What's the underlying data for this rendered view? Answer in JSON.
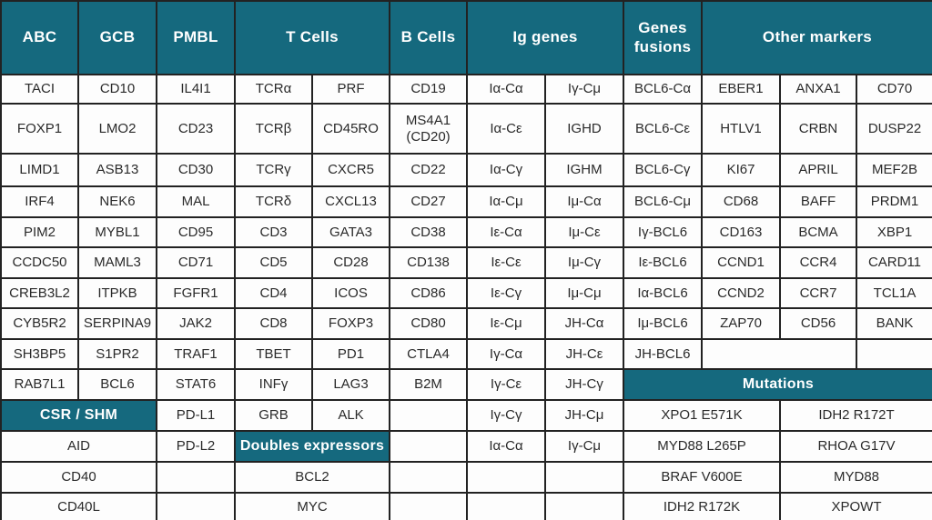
{
  "colors": {
    "teal": "#15697e",
    "border": "#222222",
    "text": "#2a2a2a",
    "cellbg": "#fdfdfd",
    "headertext": "#ffffff"
  },
  "grid": {
    "rows": [
      {
        "cells": [
          {
            "t": "ABC",
            "k": "th"
          },
          {
            "t": "GCB",
            "k": "th"
          },
          {
            "t": "PMBL",
            "k": "th"
          },
          {
            "t": "T Cells",
            "k": "th",
            "cs": 2
          },
          {
            "t": "B Cells",
            "k": "th"
          },
          {
            "t": "Ig genes",
            "k": "th",
            "cs": 2
          },
          {
            "t": "Genes fusions",
            "k": "th"
          },
          {
            "t": "Other markers",
            "k": "th",
            "cs": 3
          }
        ]
      },
      {
        "cells": [
          "TACI",
          "CD10",
          "IL4I1",
          "TCRα",
          "PRF",
          "CD19",
          "Iα-Cα",
          "Iγ-Cμ",
          "BCL6-Cα",
          "EBER1",
          "ANXA1",
          "CD70"
        ]
      },
      {
        "cells": [
          "FOXP1",
          "LMO2",
          "CD23",
          "TCRβ",
          "CD45RO",
          "MS4A1 (CD20)",
          "Iα-Cε",
          "IGHD",
          "BCL6-Cε",
          "HTLV1",
          "CRBN",
          "DUSP22"
        ]
      },
      {
        "cells": [
          "LIMD1",
          "ASB13",
          "CD30",
          "TCRγ",
          "CXCR5",
          "CD22",
          "Iα-Cγ",
          "IGHM",
          "BCL6-Cγ",
          "KI67",
          "APRIL",
          "MEF2B"
        ]
      },
      {
        "cells": [
          "IRF4",
          "NEK6",
          "MAL",
          "TCRδ",
          "CXCL13",
          "CD27",
          "Iα-Cμ",
          "Iμ-Cα",
          "BCL6-Cμ",
          "CD68",
          "BAFF",
          "PRDM1"
        ]
      },
      {
        "cells": [
          "PIM2",
          "MYBL1",
          "CD95",
          "CD3",
          "GATA3",
          "CD38",
          "Iε-Cα",
          "Iμ-Cε",
          "Iγ-BCL6",
          "CD163",
          "BCMA",
          "XBP1"
        ]
      },
      {
        "cells": [
          "CCDC50",
          "MAML3",
          "CD71",
          "CD5",
          "CD28",
          "CD138",
          "Iε-Cε",
          "Iμ-Cγ",
          "Iε-BCL6",
          "CCND1",
          "CCR4",
          "CARD11"
        ]
      },
      {
        "cells": [
          "CREB3L2",
          "ITPKB",
          "FGFR1",
          "CD4",
          "ICOS",
          "CD86",
          "Iε-Cγ",
          "Iμ-Cμ",
          "Iα-BCL6",
          "CCND2",
          "CCR7",
          "TCL1A"
        ]
      },
      {
        "cells": [
          "CYB5R2",
          "SERPINA9",
          "JAK2",
          "CD8",
          "FOXP3",
          "CD80",
          "Iε-Cμ",
          "JH-Cα",
          "Iμ-BCL6",
          "ZAP70",
          "CD56",
          "BANK"
        ]
      },
      {
        "cells": [
          "SH3BP5",
          "S1PR2",
          "TRAF1",
          "TBET",
          "PD1",
          "CTLA4",
          "Iγ-Cα",
          "JH-Cε",
          "JH-BCL6",
          {
            "k": "e",
            "cs": 2
          },
          {
            "k": "e"
          }
        ]
      },
      {
        "cells": [
          "RAB7L1",
          "BCL6",
          "STAT6",
          "INFγ",
          "LAG3",
          "B2M",
          "Iγ-Cε",
          "JH-Cγ",
          {
            "t": "Mutations",
            "k": "sh",
            "cs": 4
          }
        ]
      },
      {
        "cells": [
          {
            "t": "CSR / SHM",
            "k": "sh",
            "cs": 2
          },
          "PD-L1",
          "GRB",
          "ALK",
          {
            "k": "e"
          },
          "Iγ-Cγ",
          "JH-Cμ",
          {
            "t": "XPO1 E571K",
            "cs": 2
          },
          {
            "t": "IDH2 R172T",
            "cs": 2
          }
        ]
      },
      {
        "cells": [
          {
            "t": "AID",
            "cs": 2
          },
          "PD-L2",
          {
            "t": "Doubles expressors",
            "k": "sh",
            "cs": 2
          },
          {
            "k": "e"
          },
          "Iα-Cα",
          "Iγ-Cμ",
          {
            "t": "MYD88 L265P",
            "cs": 2
          },
          {
            "t": "RHOA G17V",
            "cs": 2
          }
        ]
      },
      {
        "cells": [
          {
            "t": "CD40",
            "cs": 2
          },
          {
            "k": "e"
          },
          {
            "t": "BCL2",
            "cs": 2
          },
          {
            "k": "e"
          },
          {
            "k": "e"
          },
          {
            "k": "e"
          },
          {
            "t": "BRAF V600E",
            "cs": 2
          },
          {
            "t": "MYD88",
            "cs": 2
          }
        ]
      },
      {
        "cells": [
          {
            "t": "CD40L",
            "cs": 2
          },
          {
            "k": "e"
          },
          {
            "t": "MYC",
            "cs": 2
          },
          {
            "k": "e"
          },
          {
            "k": "e"
          },
          {
            "k": "e"
          },
          {
            "t": "IDH2 R172K",
            "cs": 2
          },
          {
            "t": "XPOWT",
            "cs": 2
          }
        ]
      }
    ]
  },
  "chart_data": {
    "type": "table",
    "title": "",
    "column_groups": [
      {
        "label": "ABC",
        "items": [
          "TACI",
          "FOXP1",
          "LIMD1",
          "IRF4",
          "PIM2",
          "CCDC50",
          "CREB3L2",
          "CYB5R2",
          "SH3BP5",
          "RAB7L1"
        ]
      },
      {
        "label": "GCB",
        "items": [
          "CD10",
          "LMO2",
          "ASB13",
          "NEK6",
          "MYBL1",
          "MAML3",
          "ITPKB",
          "SERPINA9",
          "S1PR2",
          "BCL6"
        ]
      },
      {
        "label": "PMBL",
        "items": [
          "IL4I1",
          "CD23",
          "CD30",
          "MAL",
          "CD95",
          "CD71",
          "FGFR1",
          "JAK2",
          "TRAF1",
          "STAT6",
          "PD-L1",
          "PD-L2"
        ]
      },
      {
        "label": "T Cells",
        "items": [
          "TCRα",
          "PRF",
          "TCRβ",
          "CD45RO",
          "TCRγ",
          "CXCR5",
          "TCRδ",
          "CXCL13",
          "CD3",
          "GATA3",
          "CD5",
          "CD28",
          "CD4",
          "ICOS",
          "CD8",
          "FOXP3",
          "TBET",
          "PD1",
          "INFγ",
          "LAG3",
          "GRB",
          "ALK"
        ]
      },
      {
        "label": "B Cells",
        "items": [
          "CD19",
          "MS4A1 (CD20)",
          "CD22",
          "CD27",
          "CD38",
          "CD138",
          "CD86",
          "CD80",
          "CTLA4",
          "B2M"
        ]
      },
      {
        "label": "Ig genes",
        "items": [
          "Iα-Cα",
          "Iγ-Cμ",
          "Iα-Cε",
          "IGHD",
          "Iα-Cγ",
          "IGHM",
          "Iα-Cμ",
          "Iμ-Cα",
          "Iε-Cα",
          "Iμ-Cε",
          "Iε-Cε",
          "Iμ-Cγ",
          "Iε-Cγ",
          "Iμ-Cμ",
          "Iε-Cμ",
          "JH-Cα",
          "Iγ-Cα",
          "JH-Cε",
          "Iγ-Cε",
          "JH-Cγ",
          "Iγ-Cγ",
          "JH-Cμ",
          "Iα-Cα",
          "Iγ-Cμ"
        ]
      },
      {
        "label": "Genes fusions",
        "items": [
          "BCL6-Cα",
          "BCL6-Cε",
          "BCL6-Cγ",
          "BCL6-Cμ",
          "Iγ-BCL6",
          "Iε-BCL6",
          "Iα-BCL6",
          "Iμ-BCL6",
          "JH-BCL6"
        ]
      },
      {
        "label": "Other markers",
        "items": [
          "EBER1",
          "ANXA1",
          "CD70",
          "HTLV1",
          "CRBN",
          "DUSP22",
          "KI67",
          "APRIL",
          "MEF2B",
          "CD68",
          "BAFF",
          "PRDM1",
          "CD163",
          "BCMA",
          "XBP1",
          "CCND1",
          "CCR4",
          "CARD11",
          "CCND2",
          "CCR7",
          "TCL1A",
          "ZAP70",
          "CD56",
          "BANK"
        ]
      }
    ],
    "sections": [
      {
        "label": "CSR / SHM",
        "items": [
          "AID",
          "CD40",
          "CD40L"
        ]
      },
      {
        "label": "Doubles expressors",
        "items": [
          "BCL2",
          "MYC"
        ]
      },
      {
        "label": "Mutations",
        "rows": [
          [
            "XPO1 E571K",
            "IDH2 R172T"
          ],
          [
            "MYD88 L265P",
            "RHOA G17V"
          ],
          [
            "BRAF V600E",
            "MYD88"
          ],
          [
            "IDH2 R172K",
            "XPOWT"
          ]
        ]
      }
    ],
    "layout_hints": {
      "grid": "on",
      "header_style": "teal band",
      "columns_total": 12
    }
  }
}
